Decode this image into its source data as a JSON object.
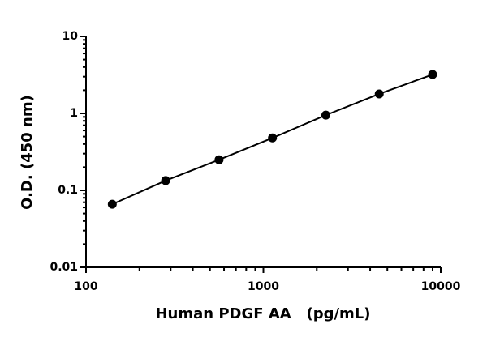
{
  "chart_data": {
    "type": "scatter-line",
    "x_label": "Human PDGF AA   (pg/mL)",
    "y_label": "O.D. (450 nm)",
    "log_x": true,
    "log_y": true,
    "xlim": [
      100,
      10000
    ],
    "xticks": [
      100,
      1000,
      10000
    ],
    "xminorticks": [
      200,
      300,
      400,
      500,
      600,
      700,
      800,
      900,
      2000,
      3000,
      4000,
      5000,
      6000,
      7000,
      8000,
      9000
    ],
    "ylim": [
      0.01,
      10
    ],
    "yticks": [
      0.01,
      0.1,
      1,
      10
    ],
    "yminorticks": [
      0.02,
      0.03,
      0.04,
      0.05,
      0.06,
      0.07,
      0.08,
      0.09,
      0.2,
      0.3,
      0.4,
      0.5,
      0.6,
      0.7,
      0.8,
      0.9,
      2,
      3,
      4,
      5,
      6,
      7,
      8,
      9
    ],
    "series": [
      {
        "color": "#000000",
        "x": [
          140.6,
          281.3,
          562.5,
          1125,
          2250,
          4500,
          9000
        ],
        "values": [
          0.066,
          0.134,
          0.25,
          0.48,
          0.95,
          1.79,
          3.2
        ]
      }
    ]
  }
}
